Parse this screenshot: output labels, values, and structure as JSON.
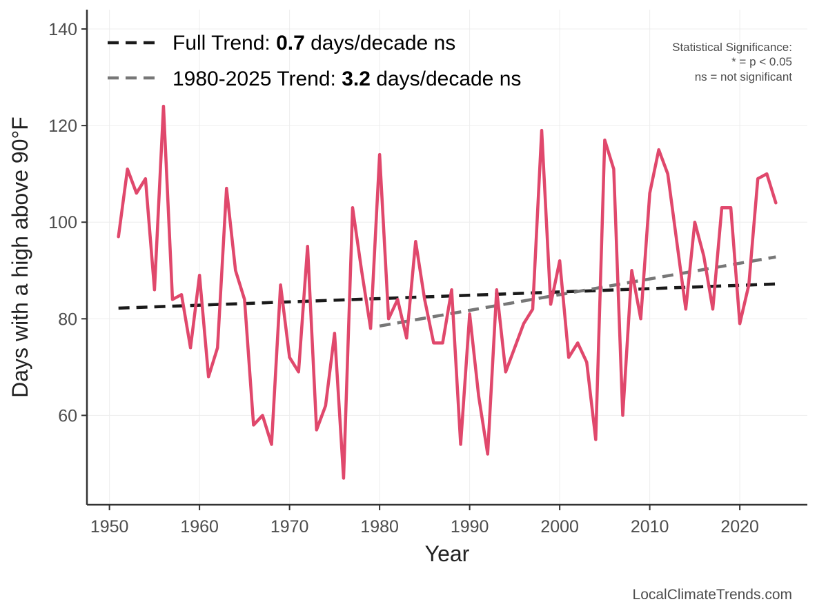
{
  "chart_data": {
    "type": "line",
    "xlabel": "Year",
    "ylabel": "Days with a high above 90°F",
    "xlim": [
      1947.5,
      2027.5
    ],
    "ylim": [
      41.5,
      144
    ],
    "x_ticks": [
      1950,
      1960,
      1970,
      1980,
      1990,
      2000,
      2010,
      2020
    ],
    "y_ticks": [
      60,
      80,
      100,
      120,
      140
    ],
    "grid": true,
    "legend_position": "top-left",
    "series": [
      {
        "color": "#e0486c",
        "x": [
          1951,
          1952,
          1953,
          1954,
          1955,
          1956,
          1957,
          1958,
          1959,
          1960,
          1961,
          1962,
          1963,
          1964,
          1965,
          1966,
          1967,
          1968,
          1969,
          1970,
          1971,
          1972,
          1973,
          1974,
          1975,
          1976,
          1977,
          1978,
          1979,
          1980,
          1981,
          1982,
          1983,
          1984,
          1985,
          1986,
          1987,
          1988,
          1989,
          1990,
          1991,
          1992,
          1993,
          1994,
          1995,
          1996,
          1997,
          1998,
          1999,
          2000,
          2001,
          2002,
          2003,
          2004,
          2005,
          2006,
          2007,
          2008,
          2009,
          2010,
          2011,
          2012,
          2013,
          2014,
          2015,
          2016,
          2017,
          2018,
          2019,
          2020,
          2021,
          2022,
          2023,
          2024
        ],
        "values": [
          97,
          111,
          106,
          109,
          86,
          124,
          84,
          85,
          74,
          89,
          68,
          74,
          107,
          90,
          84,
          58,
          60,
          54,
          87,
          72,
          69,
          95,
          57,
          62,
          77,
          47,
          103,
          90,
          78,
          114,
          80,
          84,
          76,
          96,
          84,
          75,
          75,
          86,
          54,
          81,
          64,
          52,
          86,
          69,
          74,
          79,
          82,
          119,
          83,
          92,
          72,
          75,
          71,
          55,
          117,
          111,
          60,
          90,
          80,
          106,
          115,
          110,
          96,
          82,
          100,
          93,
          82,
          103,
          103,
          79,
          87,
          109,
          110,
          104
        ]
      }
    ],
    "trend_lines": [
      {
        "label_prefix": "Full Trend: ",
        "label_value": "0.7",
        "label_suffix": " days/decade ns",
        "color": "#1a1a1a",
        "x": [
          1951,
          2024
        ],
        "y": [
          82.2,
          87.2
        ]
      },
      {
        "label_prefix": "1980-2025 Trend: ",
        "label_value": "3.2",
        "label_suffix": " days/decade ns",
        "color": "#777777",
        "x": [
          1980,
          2024
        ],
        "y": [
          78.5,
          92.8
        ]
      }
    ],
    "annotations": {
      "significance_title": "Statistical Significance:",
      "significance_line1": "* = p < 0.05",
      "significance_line2": "ns = not significant"
    },
    "credit": "LocalClimateTrends.com"
  }
}
